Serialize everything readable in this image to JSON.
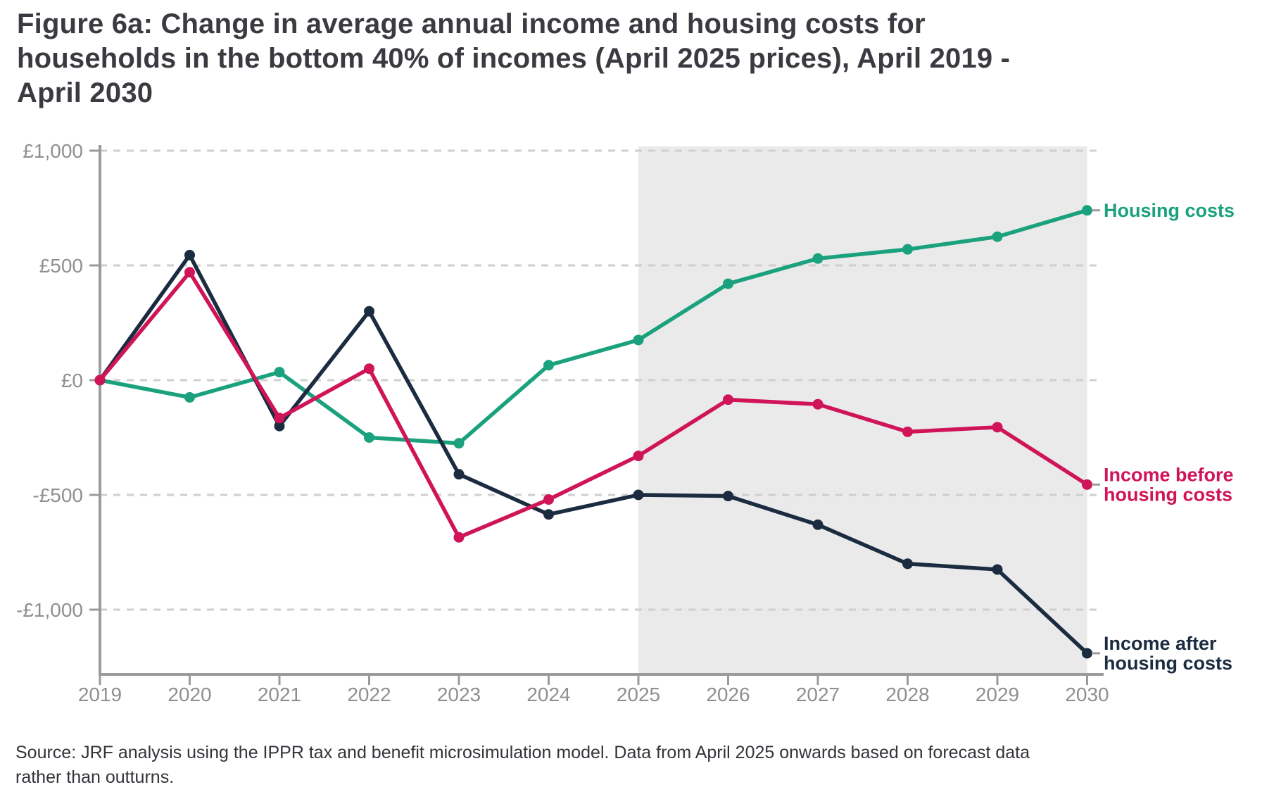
{
  "title": {
    "lines": [
      "Figure 6a: Change in average annual income and housing costs for",
      "households in the bottom 40% of incomes (April 2025 prices), April 2019 -",
      "April 2030"
    ]
  },
  "source": {
    "lines": [
      "Source: JRF analysis using the IPPR tax and benefit microsimulation model. Data from April 2025 onwards based on forecast data",
      "rather than outturns."
    ]
  },
  "chart_data": {
    "type": "line",
    "x": [
      2019,
      2020,
      2021,
      2022,
      2023,
      2024,
      2025,
      2026,
      2027,
      2028,
      2029,
      2030
    ],
    "x_tick_labels": [
      "2019",
      "2020",
      "2021",
      "2022",
      "2023",
      "2024",
      "2025",
      "2026",
      "2027",
      "2028",
      "2029",
      "2030"
    ],
    "y_axis": {
      "ticks": [
        1000,
        500,
        0,
        -500,
        -1000
      ],
      "tick_labels": [
        "£1,000",
        "£500",
        "£0",
        "-£500",
        "-£1,000"
      ],
      "range": [
        -1280,
        1020
      ]
    },
    "grid": "dashed-horizontal",
    "legend_position": "right-of-last-point",
    "forecast_band": {
      "from_x": 2025,
      "to_x": 2030,
      "color": "#eaeaea"
    },
    "series": [
      {
        "name": "Housing costs",
        "label_lines": [
          "Housing costs"
        ],
        "color": "#1aa17d",
        "values": [
          0,
          -75,
          35,
          -250,
          -275,
          65,
          175,
          420,
          530,
          570,
          625,
          740
        ]
      },
      {
        "name": "Income before housing costs",
        "label_lines": [
          "Income before",
          "housing costs"
        ],
        "color": "#d01458",
        "values": [
          0,
          470,
          -165,
          50,
          -685,
          -520,
          -330,
          -85,
          -105,
          -225,
          -205,
          -455
        ]
      },
      {
        "name": "Income after housing costs",
        "label_lines": [
          "Income after",
          "housing costs"
        ],
        "color": "#1b2b40",
        "values": [
          0,
          545,
          -200,
          300,
          -410,
          -585,
          -500,
          -505,
          -630,
          -800,
          -825,
          -1190
        ]
      }
    ],
    "axis_colors": {
      "axis_line": "#9b9b9b",
      "tick_text": "#8f8f8f",
      "gridline": "#cfcfcf"
    }
  }
}
